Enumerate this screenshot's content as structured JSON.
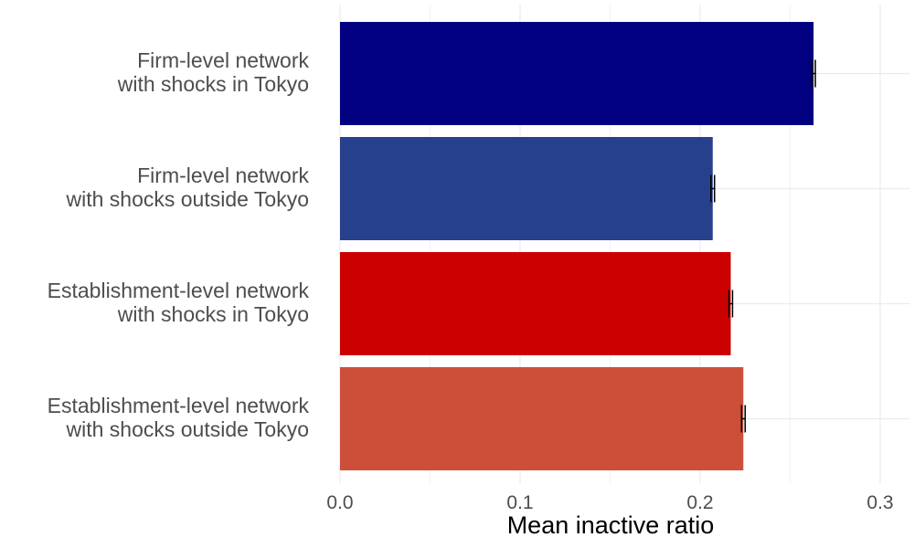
{
  "chart_data": {
    "type": "bar",
    "orientation": "horizontal",
    "xlabel": "Mean inactive ratio",
    "ylabel": "",
    "xlim": [
      0,
      0.31
    ],
    "xticks": [
      0.0,
      0.1,
      0.2,
      0.3
    ],
    "xtick_labels": [
      "0.0",
      "0.1",
      "0.2",
      "0.3"
    ],
    "grid": true,
    "categories": [
      "Firm-level network\nwith shocks in Tokyo",
      "Firm-level network\nwith shocks outside Tokyo",
      "Establishment-level network\nwith shocks in Tokyo",
      "Establishment-level network\nwith shocks outside Tokyo"
    ],
    "values": [
      0.263,
      0.207,
      0.217,
      0.224
    ],
    "error_low": [
      0.262,
      0.206,
      0.216,
      0.223
    ],
    "error_high": [
      0.264,
      0.208,
      0.218,
      0.225
    ],
    "colors": [
      "#000080",
      "#27408B",
      "#CD0000",
      "#CD4F39"
    ]
  }
}
